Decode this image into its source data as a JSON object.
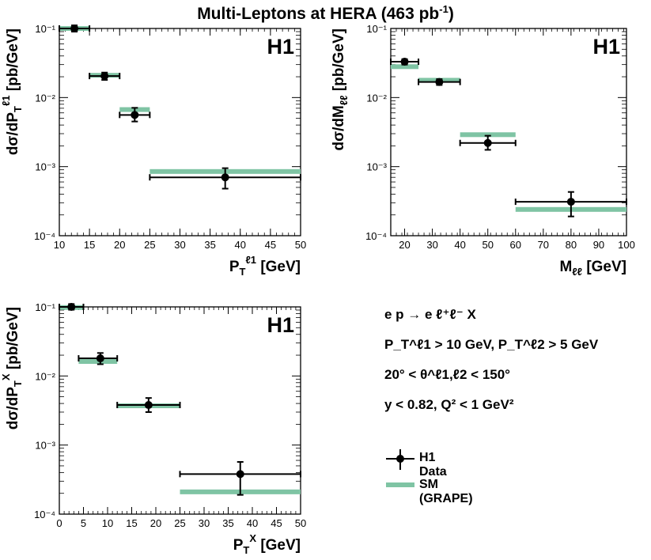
{
  "title": {
    "text": "Multi-Leptons at HERA (463 pb",
    "sup": "-1",
    "close": ")"
  },
  "colors": {
    "sm": "#7fc4a4",
    "data": "#000000"
  },
  "chart_data": [
    {
      "type": "scatter",
      "panel_label": "H1",
      "xlabel": "P_T^l1 [GeV]",
      "ylabel": "dσ/dP_T^l1 [pb/GeV]",
      "xlim": [
        10,
        50
      ],
      "ylim": [
        0.0001,
        0.1
      ],
      "ylog": true,
      "xticks": [
        10,
        15,
        20,
        25,
        30,
        35,
        40,
        45,
        50
      ],
      "yticks_text": [
        "10⁻⁴",
        "10⁻³",
        "10⁻²",
        "10⁻¹"
      ],
      "yticks": [
        0.0001,
        0.001,
        0.01,
        0.1
      ],
      "data": [
        {
          "x": 12.5,
          "xlo": 10,
          "xhi": 15,
          "y": 0.1,
          "ylo": 0.09,
          "yhi": 0.111
        },
        {
          "x": 17.5,
          "xlo": 15,
          "xhi": 20,
          "y": 0.0205,
          "ylo": 0.018,
          "yhi": 0.023
        },
        {
          "x": 22.5,
          "xlo": 20,
          "xhi": 25,
          "y": 0.0056,
          "ylo": 0.0045,
          "yhi": 0.0071
        },
        {
          "x": 37.5,
          "xlo": 25,
          "xhi": 50,
          "y": 0.0007,
          "ylo": 0.00048,
          "yhi": 0.00095
        }
      ],
      "sm": [
        {
          "xlo": 10,
          "xhi": 15,
          "y": 0.1
        },
        {
          "xlo": 15,
          "xhi": 20,
          "y": 0.021
        },
        {
          "xlo": 20,
          "xhi": 25,
          "y": 0.0067
        },
        {
          "xlo": 25,
          "xhi": 50,
          "y": 0.00085
        }
      ]
    },
    {
      "type": "scatter",
      "panel_label": "H1",
      "xlabel": "M_ll [GeV]",
      "ylabel": "dσ/dM_ll [pb/GeV]",
      "xlim": [
        15,
        100
      ],
      "ylim": [
        0.0001,
        0.1
      ],
      "ylog": true,
      "xticks": [
        20,
        30,
        40,
        50,
        60,
        70,
        80,
        90,
        100
      ],
      "yticks_text": [
        "10⁻⁴",
        "10⁻³",
        "10⁻²",
        "10⁻¹"
      ],
      "yticks": [
        0.0001,
        0.001,
        0.01,
        0.1
      ],
      "data": [
        {
          "x": 20,
          "xlo": 15,
          "xhi": 25,
          "y": 0.033,
          "ylo": 0.03,
          "yhi": 0.036
        },
        {
          "x": 32.5,
          "xlo": 25,
          "xhi": 40,
          "y": 0.0168,
          "ylo": 0.0152,
          "yhi": 0.0185
        },
        {
          "x": 50,
          "xlo": 40,
          "xhi": 60,
          "y": 0.0022,
          "ylo": 0.00175,
          "yhi": 0.0028
        },
        {
          "x": 80,
          "xlo": 60,
          "xhi": 100,
          "y": 0.00031,
          "ylo": 0.00019,
          "yhi": 0.00043
        }
      ],
      "sm": [
        {
          "xlo": 15,
          "xhi": 25,
          "y": 0.028
        },
        {
          "xlo": 25,
          "xhi": 40,
          "y": 0.0178
        },
        {
          "xlo": 40,
          "xhi": 60,
          "y": 0.0029
        },
        {
          "xlo": 60,
          "xhi": 100,
          "y": 0.00024
        }
      ]
    },
    {
      "type": "scatter",
      "panel_label": "H1",
      "xlabel": "P_T^X [GeV]",
      "ylabel": "dσ/dP_T^X [pb/GeV]",
      "xlim": [
        0,
        50
      ],
      "ylim": [
        0.0001,
        0.1
      ],
      "ylog": true,
      "xticks": [
        0,
        5,
        10,
        15,
        20,
        25,
        30,
        35,
        40,
        45,
        50
      ],
      "yticks_text": [
        "10⁻⁴",
        "10⁻³",
        "10⁻²",
        "10⁻¹"
      ],
      "yticks": [
        0.0001,
        0.001,
        0.01,
        0.1
      ],
      "data": [
        {
          "x": 2.5,
          "xlo": 0,
          "xhi": 5,
          "y": 0.1,
          "ylo": 0.091,
          "yhi": 0.11
        },
        {
          "x": 8.5,
          "xlo": 4,
          "xhi": 12,
          "y": 0.018,
          "ylo": 0.0148,
          "yhi": 0.0215
        },
        {
          "x": 18.5,
          "xlo": 12,
          "xhi": 25,
          "y": 0.0038,
          "ylo": 0.003,
          "yhi": 0.0048
        },
        {
          "x": 37.5,
          "xlo": 25,
          "xhi": 50,
          "y": 0.00038,
          "ylo": 0.00019,
          "yhi": 0.00057
        }
      ],
      "sm": [
        {
          "xlo": 0,
          "xhi": 5,
          "y": 0.098
        },
        {
          "xlo": 4,
          "xhi": 12,
          "y": 0.0162
        },
        {
          "xlo": 12,
          "xhi": 25,
          "y": 0.0037
        },
        {
          "xlo": 25,
          "xhi": 50,
          "y": 0.00021
        }
      ]
    }
  ],
  "cuts": {
    "line1": "e p → e ℓ⁺ℓ⁻ X",
    "line2": "P_T^ℓ1 > 10 GeV, P_T^ℓ2 > 5 GeV",
    "line3": "20° < θ^ℓ1,ℓ2 < 150°",
    "line4": "y < 0.82,  Q² < 1 GeV²"
  },
  "legend": {
    "data_label": "H1 Data",
    "sm_label": "SM (GRAPE)"
  }
}
